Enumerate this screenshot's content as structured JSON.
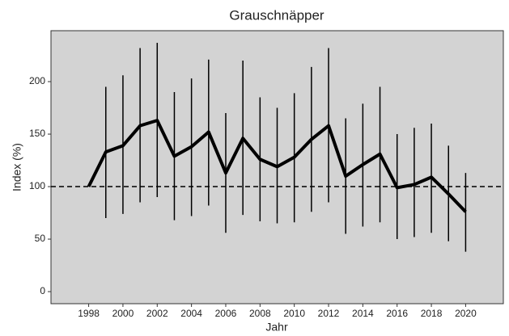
{
  "chart_data": {
    "type": "line",
    "title": "Grauschnäpper",
    "x_label": "Jahr",
    "y_label": "Index (%)",
    "x": [
      1998,
      1999,
      2000,
      2001,
      2002,
      2003,
      2004,
      2005,
      2006,
      2007,
      2008,
      2009,
      2010,
      2011,
      2012,
      2013,
      2014,
      2015,
      2016,
      2017,
      2018,
      2019,
      2020
    ],
    "series": [
      {
        "color": "#000000",
        "values": [
          100,
          133,
          139,
          158,
          163,
          129,
          138,
          152,
          113,
          146,
          126,
          119,
          128,
          145,
          158,
          110,
          121,
          131,
          99,
          102,
          109,
          93,
          76
        ],
        "lower": [
          null,
          70,
          74,
          85,
          90,
          68,
          72,
          82,
          56,
          73,
          67,
          65,
          66,
          76,
          85,
          55,
          62,
          66,
          50,
          52,
          56,
          48,
          38
        ],
        "upper": [
          null,
          195,
          206,
          232,
          237,
          190,
          203,
          221,
          170,
          220,
          185,
          175,
          189,
          214,
          232,
          165,
          179,
          195,
          150,
          156,
          160,
          139,
          113
        ]
      }
    ],
    "hline": 100,
    "xlim": [
      1995.8,
      2022.2
    ],
    "ylim": [
      -11.5,
      248.5
    ],
    "xticks": [
      1998,
      2000,
      2002,
      2004,
      2006,
      2008,
      2010,
      2012,
      2014,
      2016,
      2018,
      2020
    ],
    "yticks": [
      0,
      50,
      100,
      150,
      200
    ],
    "background": "#d3d3d3"
  }
}
